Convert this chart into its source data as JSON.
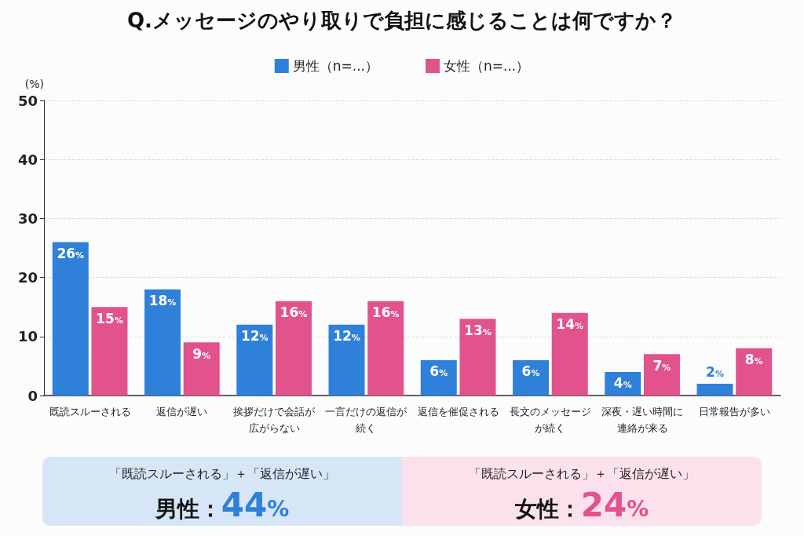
{
  "chart_data": {
    "type": "bar",
    "title": "Q.メッセージのやり取りで負担に感じることは何ですか？",
    "ylabel": "(%)",
    "categories": [
      "既読スルーされる",
      "返信が遅い",
      "挨拶だけで会話が広がらない",
      "一言だけの返信が続く",
      "返信を催促される",
      "長文のメッセージが続く",
      "深夜・遅い時間に連絡が来る",
      "日常報告が多い"
    ],
    "series": [
      {
        "name": "男性（n=...）",
        "color": "#2f80d8",
        "values": [
          26,
          18,
          12,
          12,
          6,
          6,
          4,
          2
        ],
        "value_labels": [
          "26%",
          "18%",
          "12%",
          "12%",
          "6%",
          "6%",
          "4%",
          "2%"
        ]
      },
      {
        "name": "女性（n=...）",
        "color": "#e2528c",
        "values": [
          15,
          9,
          16,
          16,
          13,
          14,
          7,
          8
        ],
        "value_labels": [
          "15%",
          "9%",
          "16%",
          "16%",
          "13%",
          "14%",
          "7%",
          "8%"
        ]
      }
    ],
    "ylim": [
      0,
      50
    ],
    "yticks": [
      0,
      10,
      20,
      30,
      40,
      50
    ],
    "grid": "y",
    "legend": "top",
    "annotations": [
      "「既読スルーされる」＋「返信が遅い」",
      "男性：44%",
      "「既読スルーされる」＋「返信が遅い」",
      "女性：24%"
    ]
  }
}
